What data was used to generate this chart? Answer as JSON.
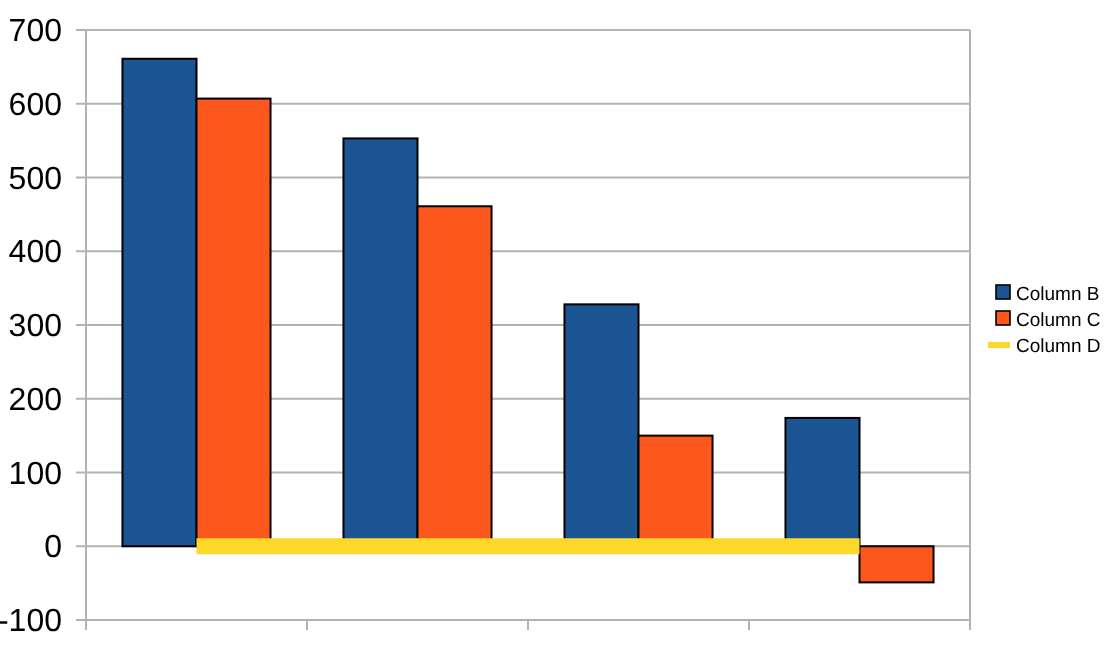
{
  "chart_data": {
    "type": "bar",
    "categories": [
      null,
      null,
      null,
      null
    ],
    "series": [
      {
        "name": "Column B",
        "color": "#1c5594",
        "values": [
          661,
          553,
          328,
          174
        ]
      },
      {
        "name": "Column C",
        "color": "#fc571c",
        "values": [
          607,
          461,
          150,
          -49
        ]
      },
      {
        "name": "Column D",
        "type": "line",
        "color": "#fcd928",
        "values": [
          0,
          0,
          0,
          0
        ]
      }
    ],
    "ylim": [
      -100,
      700
    ],
    "yticks": [
      -100,
      0,
      100,
      200,
      300,
      400,
      500,
      600,
      700
    ],
    "grid": "y",
    "legend": "right",
    "marker": "none"
  }
}
